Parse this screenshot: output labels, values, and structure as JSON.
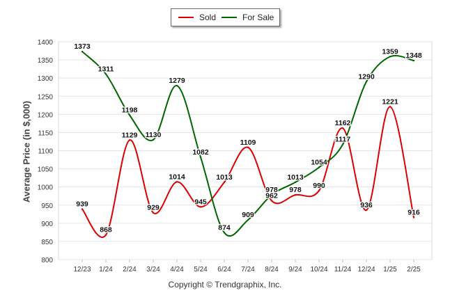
{
  "chart_data": {
    "type": "line",
    "ylabel": "Average Price (in $,000)",
    "xlabel": "",
    "ylim": [
      800,
      1400
    ],
    "yticks": [
      800,
      850,
      900,
      950,
      1000,
      1050,
      1100,
      1150,
      1200,
      1250,
      1300,
      1350,
      1400
    ],
    "grid": true,
    "smooth": true,
    "legend_position": "top-center",
    "categories": [
      "12/23",
      "1/24",
      "2/24",
      "3/24",
      "4/24",
      "5/24",
      "6/24",
      "7/24",
      "8/24",
      "9/24",
      "10/24",
      "11/24",
      "12/24",
      "1/25",
      "2/25"
    ],
    "series": [
      {
        "name": "Sold",
        "color": "#dd0000",
        "values": [
          939,
          868,
          1129,
          929,
          1014,
          945,
          1013,
          1109,
          962,
          978,
          990,
          1162,
          936,
          1221,
          916
        ]
      },
      {
        "name": "For Sale",
        "color": "#006600",
        "values": [
          1373,
          1311,
          1198,
          1130,
          1279,
          1082,
          874,
          909,
          978,
          1013,
          1054,
          1117,
          1290,
          1359,
          1348
        ]
      }
    ]
  },
  "footer": "Copyright © Trendgraphix, Inc."
}
